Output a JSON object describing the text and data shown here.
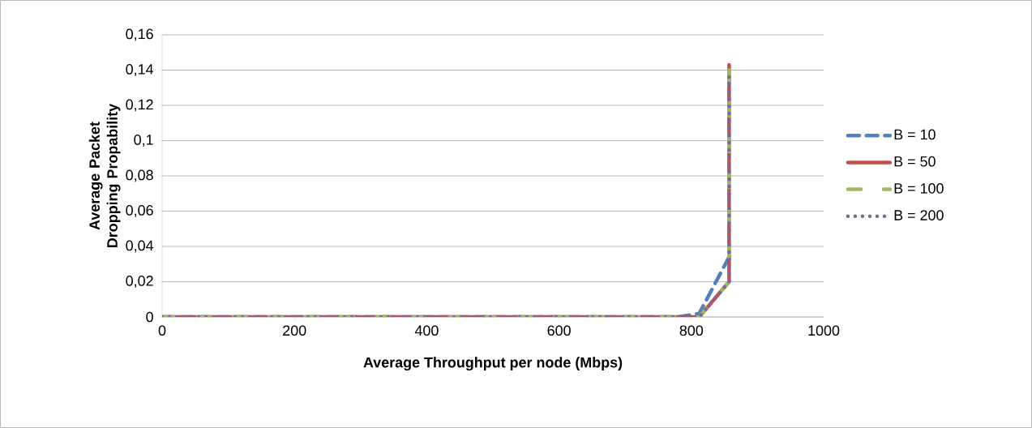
{
  "chart_data": {
    "type": "line",
    "xlabel": "Average Throughput per node (Mbps)",
    "ylabel": "Average Packet Dropping Propability",
    "xlim": [
      0,
      1000
    ],
    "xticks": [
      0,
      200,
      400,
      600,
      800,
      1000
    ],
    "ylim": [
      0,
      0.16
    ],
    "yticks": [
      {
        "value": 0,
        "label": "0"
      },
      {
        "value": 0.02,
        "label": "0,02"
      },
      {
        "value": 0.04,
        "label": "0,04"
      },
      {
        "value": 0.06,
        "label": "0,06"
      },
      {
        "value": 0.08,
        "label": "0,08"
      },
      {
        "value": 0.1,
        "label": "0,1"
      },
      {
        "value": 0.12,
        "label": "0,12"
      },
      {
        "value": 0.14,
        "label": "0,14"
      },
      {
        "value": 0.16,
        "label": "0,16"
      }
    ],
    "grid": "y",
    "legend": "right",
    "series": [
      {
        "name": "B = 10",
        "color": "#4f81bd",
        "line_style": "dashed",
        "x": [
          0,
          780,
          812,
          857
        ],
        "values": [
          0,
          0,
          0.002,
          0.034
        ]
      },
      {
        "name": "B = 50",
        "color": "#c0504d",
        "line_style": "solid",
        "x": [
          0,
          812,
          857,
          857
        ],
        "values": [
          0,
          0,
          0.02,
          0.143
        ]
      },
      {
        "name": "B = 100",
        "color": "#9bbb59",
        "line_style": "dashdot",
        "x": [
          0,
          812,
          857,
          857
        ],
        "values": [
          0,
          0,
          0.02,
          0.14
        ]
      },
      {
        "name": "B = 200",
        "color": "#8064a2",
        "line_style": "dotted",
        "x": [
          0,
          812,
          857,
          857
        ],
        "values": [
          0,
          0,
          0.02,
          0.14
        ]
      }
    ]
  }
}
